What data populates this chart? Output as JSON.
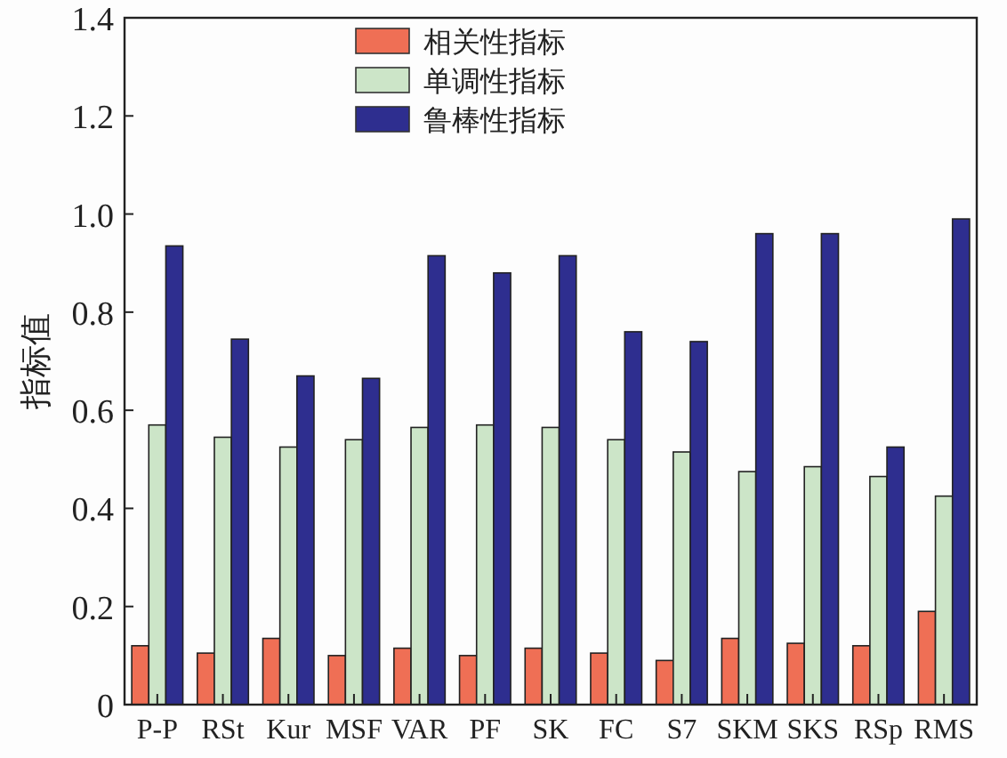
{
  "chart_data": {
    "type": "bar",
    "ylabel": "指标值",
    "categories": [
      "P-P",
      "RSt",
      "Kur",
      "MSF",
      "VAR",
      "PF",
      "SK",
      "FC",
      "S7",
      "SKM",
      "SKS",
      "RSp",
      "RMS"
    ],
    "series": [
      {
        "name": "相关性指标",
        "color": "#ef6f55",
        "values": [
          0.12,
          0.105,
          0.135,
          0.1,
          0.115,
          0.1,
          0.115,
          0.105,
          0.09,
          0.135,
          0.125,
          0.12,
          0.19
        ]
      },
      {
        "name": "单调性指标",
        "color": "#cce5c8",
        "values": [
          0.57,
          0.545,
          0.525,
          0.54,
          0.565,
          0.57,
          0.565,
          0.54,
          0.515,
          0.475,
          0.485,
          0.465,
          0.425
        ]
      },
      {
        "name": "鲁棒性指标",
        "color": "#2e2e8f",
        "values": [
          0.935,
          0.745,
          0.67,
          0.665,
          0.915,
          0.88,
          0.915,
          0.76,
          0.74,
          0.96,
          0.96,
          0.525,
          0.99
        ]
      }
    ],
    "ylim": [
      0,
      1.4
    ],
    "yticks": [
      0,
      0.2,
      0.4,
      0.6,
      0.8,
      {
        "value": 1,
        "label": "1.0"
      },
      1.2,
      1.4
    ],
    "legend": "top"
  }
}
